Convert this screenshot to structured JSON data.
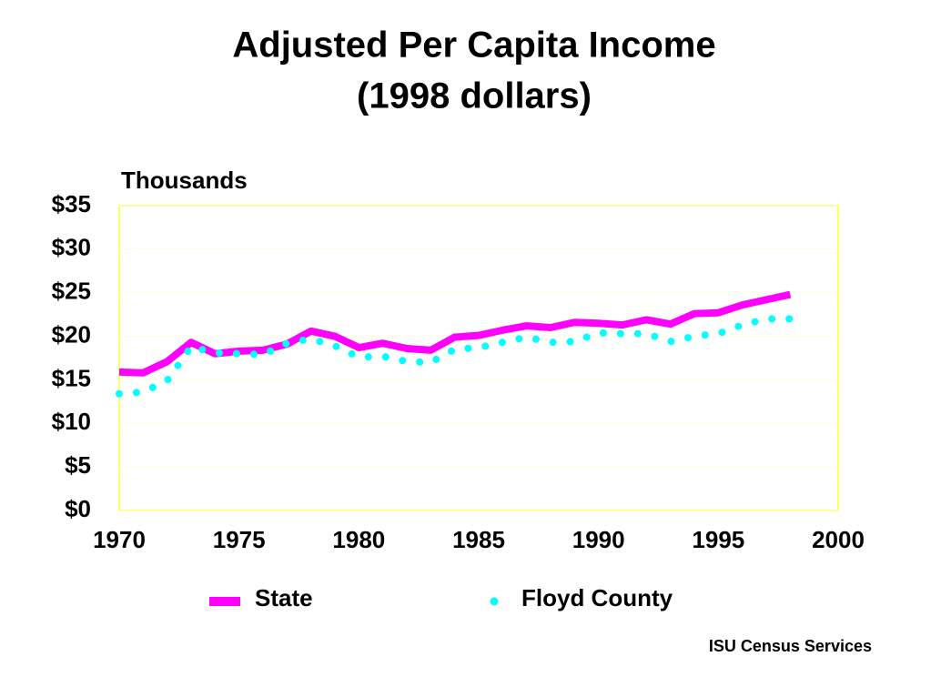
{
  "chart_data": {
    "type": "line",
    "title": "Adjusted Per Capita Income",
    "subtitle": "(1998 dollars)",
    "y_axis_label": "Thousands",
    "source": "ISU Census Services",
    "x": [
      1970,
      1971,
      1972,
      1973,
      1974,
      1975,
      1976,
      1977,
      1978,
      1979,
      1980,
      1981,
      1982,
      1983,
      1984,
      1985,
      1986,
      1987,
      1988,
      1989,
      1990,
      1991,
      1992,
      1993,
      1994,
      1995,
      1996,
      1997,
      1998
    ],
    "series": [
      {
        "name": "State",
        "color": "#ff00ff",
        "style": "solid",
        "values": [
          15.9,
          15.8,
          17.1,
          19.3,
          18.0,
          18.3,
          18.4,
          19.1,
          20.6,
          20.0,
          18.7,
          19.2,
          18.6,
          18.4,
          19.9,
          20.1,
          20.7,
          21.2,
          21.0,
          21.6,
          21.5,
          21.3,
          21.9,
          21.4,
          22.6,
          22.7,
          23.6,
          24.2,
          24.8
        ]
      },
      {
        "name": "Floyd County",
        "color": "#00ffff",
        "style": "dotted",
        "values": [
          13.4,
          13.6,
          14.9,
          18.8,
          18.1,
          18.0,
          17.9,
          19.2,
          19.7,
          18.9,
          17.6,
          17.7,
          17.1,
          17.0,
          18.5,
          18.7,
          19.3,
          19.9,
          19.3,
          19.4,
          20.4,
          20.3,
          20.3,
          19.4,
          20.0,
          20.3,
          21.3,
          22.0,
          22.0
        ]
      }
    ],
    "xlim": [
      1970,
      2000
    ],
    "xticks": [
      1970,
      1975,
      1980,
      1985,
      1990,
      1995,
      2000
    ],
    "ylim": [
      0,
      35
    ],
    "yticks": [
      {
        "value": 0,
        "label": "$0"
      },
      {
        "value": 5,
        "label": "$5"
      },
      {
        "value": 10,
        "label": "$10"
      },
      {
        "value": 15,
        "label": "$15"
      },
      {
        "value": 20,
        "label": "$20"
      },
      {
        "value": 25,
        "label": "$25"
      },
      {
        "value": 30,
        "label": "$30"
      },
      {
        "value": 35,
        "label": "$35"
      }
    ],
    "grid": true,
    "legend": "bottom"
  }
}
